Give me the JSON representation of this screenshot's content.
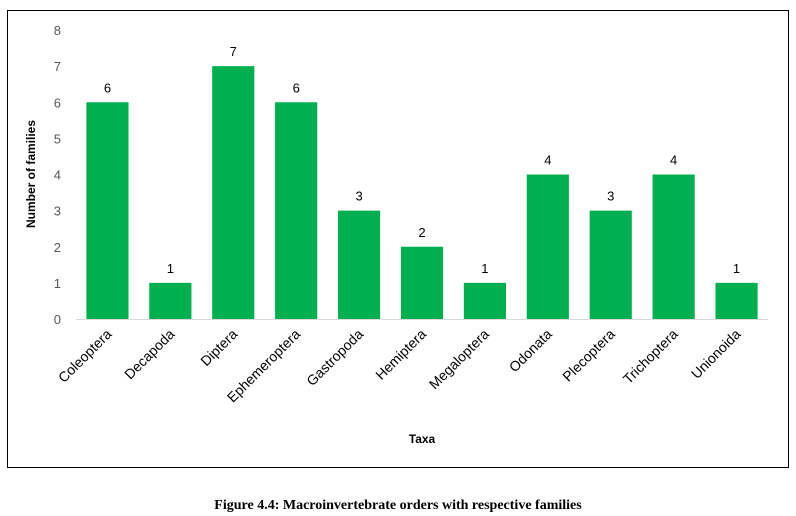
{
  "caption": "Figure 4.4: Macroinvertebrate orders with respective families",
  "chart_data": {
    "type": "bar",
    "title": "",
    "xlabel": "Taxa",
    "ylabel": "Number of families",
    "ylim": [
      0,
      8
    ],
    "yticks": [
      0,
      1,
      2,
      3,
      4,
      5,
      6,
      7,
      8
    ],
    "categories": [
      "Coleoptera",
      "Decapoda",
      "Diptera",
      "Ephemeroptera",
      "Gastropoda",
      "Hemiptera",
      "Megaloptera",
      "Odonata",
      "Plecoptera",
      "Trichoptera",
      "Unionoida"
    ],
    "values": [
      6,
      1,
      7,
      6,
      3,
      2,
      1,
      4,
      3,
      4,
      1
    ],
    "data_labels": true,
    "grid": false,
    "legend": "none",
    "bar_color": "#00B050",
    "axis_color": "#D9D9D9"
  }
}
